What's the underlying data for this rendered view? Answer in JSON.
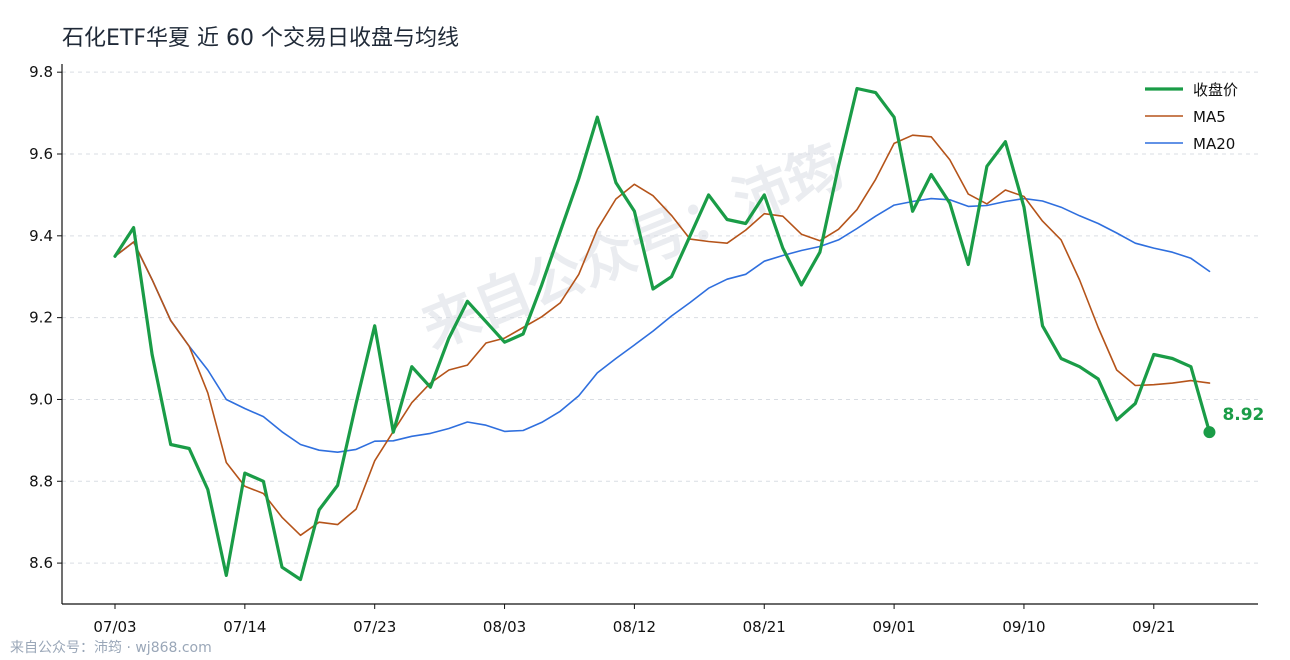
{
  "chart_data": {
    "type": "line",
    "title": "石化ETF华夏 近 60 个交易日收盘与均线",
    "xlabel": "",
    "ylabel": "",
    "ylim": [
      8.5,
      9.82
    ],
    "yticks": [
      8.6,
      8.8,
      9.0,
      9.2,
      9.4,
      9.6,
      9.8
    ],
    "ytick_labels": [
      "8.6",
      "8.8",
      "9.0",
      "9.2",
      "9.4",
      "9.6",
      "9.8"
    ],
    "xtick_labels": [
      "07/03",
      "07/14",
      "07/23",
      "08/03",
      "08/12",
      "08/21",
      "09/01",
      "09/10",
      "09/21"
    ],
    "xtick_indices": [
      0,
      7,
      14,
      21,
      28,
      35,
      42,
      49,
      56
    ],
    "grid": "horizontal dashed",
    "legend_position": "top-right",
    "series": [
      {
        "name": "收盘价",
        "color": "#1a9c47",
        "values": [
          9.35,
          9.42,
          9.11,
          8.89,
          8.88,
          8.78,
          8.57,
          8.82,
          8.8,
          8.59,
          8.56,
          8.73,
          8.79,
          8.99,
          9.18,
          8.92,
          9.08,
          9.03,
          9.15,
          9.24,
          9.19,
          9.14,
          9.16,
          9.28,
          9.41,
          9.54,
          9.69,
          9.53,
          9.46,
          9.27,
          9.3,
          9.4,
          9.5,
          9.44,
          9.43,
          9.5,
          9.37,
          9.28,
          9.36,
          9.57,
          9.76,
          9.75,
          9.69,
          9.46,
          9.55,
          9.48,
          9.33,
          9.57,
          9.63,
          9.47,
          9.18,
          9.1,
          9.08,
          9.05,
          8.95,
          8.99,
          9.11,
          9.1,
          9.08,
          8.92
        ]
      },
      {
        "name": "MA5",
        "color": "#b5541a",
        "values": [
          9.35,
          9.385,
          9.293,
          9.193,
          9.13,
          9.016,
          8.846,
          8.788,
          8.77,
          8.712,
          8.668,
          8.7,
          8.694,
          8.732,
          8.85,
          8.922,
          8.992,
          9.04,
          9.072,
          9.084,
          9.138,
          9.15,
          9.176,
          9.202,
          9.236,
          9.306,
          9.416,
          9.49,
          9.526,
          9.498,
          9.45,
          9.392,
          9.386,
          9.382,
          9.414,
          9.454,
          9.448,
          9.404,
          9.388,
          9.416,
          9.464,
          9.538,
          9.626,
          9.646,
          9.642,
          9.586,
          9.502,
          9.478,
          9.512,
          9.496,
          9.436,
          9.39,
          9.292,
          9.176,
          9.072,
          9.034,
          9.036,
          9.04,
          9.046,
          9.04
        ]
      },
      {
        "name": "MA20",
        "color": "#2f6fde",
        "values": [
          9.35,
          9.385,
          9.293,
          9.193,
          9.13,
          9.072,
          9.0,
          8.978,
          8.958,
          8.921,
          8.89,
          8.876,
          8.871,
          8.878,
          8.898,
          8.899,
          8.91,
          8.917,
          8.929,
          8.945,
          8.937,
          8.922,
          8.924,
          8.944,
          8.971,
          9.009,
          9.065,
          9.1,
          9.133,
          9.167,
          9.204,
          9.237,
          9.272,
          9.294,
          9.306,
          9.338,
          9.352,
          9.364,
          9.374,
          9.39,
          9.418,
          9.448,
          9.475,
          9.484,
          9.491,
          9.488,
          9.472,
          9.474,
          9.484,
          9.491,
          9.485,
          9.47,
          9.449,
          9.43,
          9.407,
          9.382,
          9.37,
          9.36,
          9.345,
          9.313
        ]
      }
    ],
    "annotation": {
      "text": "8.92",
      "index": 59,
      "value": 8.92,
      "color": "#1a9c47"
    },
    "watermark": "来自公众号：沛筠"
  },
  "footer": "来自公众号：沛筠 · wj868.com"
}
